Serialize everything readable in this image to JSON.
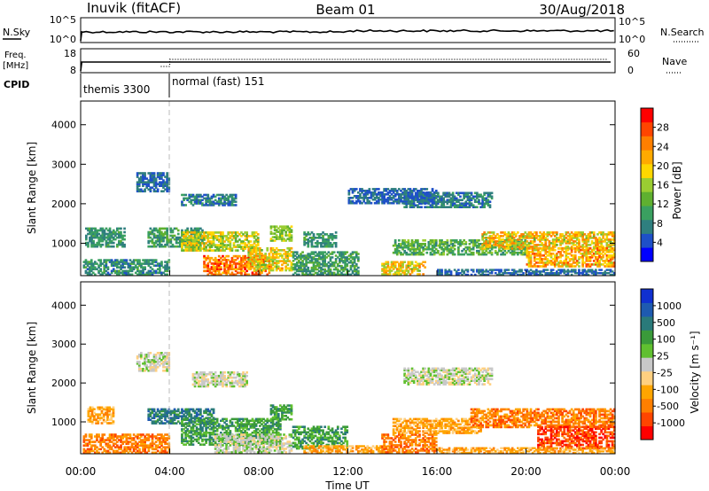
{
  "header": {
    "station_title": "Inuvik (fitACF)",
    "beam": "Beam 01",
    "date": "30/Aug/2018"
  },
  "noise_panel": {
    "left_label": "N.Sky",
    "left_ticks": [
      "10^5",
      "10^0"
    ],
    "right_ticks": [
      "10^5",
      "10^0"
    ],
    "right_label": "N.Search"
  },
  "freq_panel": {
    "left_label_line1": "Freq.",
    "left_label_line2": "[MHz]",
    "left_ticks": [
      "18",
      "8"
    ],
    "right_ticks": [
      "60",
      "0"
    ],
    "right_label": "Nave"
  },
  "cpid_panel": {
    "label": "CPID",
    "entries": [
      {
        "text": "themis 3300",
        "start_hour": 0
      },
      {
        "text": "normal (fast) 151",
        "start_hour": 4
      }
    ]
  },
  "time_axis": {
    "label": "Time UT",
    "ticks": [
      "00:00",
      "04:00",
      "08:00",
      "12:00",
      "16:00",
      "20:00",
      "00:00"
    ],
    "range_hours": [
      0,
      24
    ]
  },
  "chart_data": [
    {
      "type": "heatmap",
      "name": "power",
      "xlabel": "Time UT",
      "ylabel": "Slant Range [km]",
      "ylim": [
        180,
        4600
      ],
      "y_ticks": [
        "1000",
        "2000",
        "3000",
        "4000"
      ],
      "y_tick_values": [
        1000,
        2000,
        3000,
        4000
      ],
      "colorbar_label": "Power [dB]",
      "colorbar_ticks": [
        "4",
        "8",
        "12",
        "16",
        "20",
        "24",
        "28"
      ],
      "colorbar_tick_values": [
        4,
        8,
        12,
        16,
        20,
        24,
        28
      ],
      "colorbar_range": [
        0,
        32
      ],
      "colors": [
        "#0000ff",
        "#1e50c8",
        "#2f7f7f",
        "#3aa060",
        "#5fb030",
        "#9acd32",
        "#ffd700",
        "#ffaa00",
        "#ff7f00",
        "#ff4500",
        "#ff0000"
      ],
      "regions": [
        {
          "t0": 0.1,
          "t1": 4.0,
          "r0": 190,
          "r1": 600,
          "v0": 5,
          "v1": 12
        },
        {
          "t0": 0.2,
          "t1": 2.0,
          "r0": 900,
          "r1": 1400,
          "v0": 6,
          "v1": 12
        },
        {
          "t0": 3.0,
          "t1": 5.5,
          "r0": 900,
          "r1": 1400,
          "v0": 6,
          "v1": 14
        },
        {
          "t0": 2.5,
          "t1": 4.0,
          "r0": 2300,
          "r1": 2800,
          "v0": 4,
          "v1": 8
        },
        {
          "t0": 4.5,
          "t1": 7.0,
          "r0": 1950,
          "r1": 2250,
          "v0": 4,
          "v1": 10
        },
        {
          "t0": 4.5,
          "t1": 8.0,
          "r0": 800,
          "r1": 1300,
          "v0": 12,
          "v1": 22
        },
        {
          "t0": 5.5,
          "t1": 8.5,
          "r0": 190,
          "r1": 700,
          "v0": 20,
          "v1": 30
        },
        {
          "t0": 7.5,
          "t1": 9.5,
          "r0": 300,
          "r1": 900,
          "v0": 14,
          "v1": 24
        },
        {
          "t0": 8.5,
          "t1": 9.5,
          "r0": 1050,
          "r1": 1450,
          "v0": 12,
          "v1": 18
        },
        {
          "t0": 9.5,
          "t1": 12.5,
          "r0": 190,
          "r1": 800,
          "v0": 6,
          "v1": 14
        },
        {
          "t0": 10.0,
          "t1": 11.5,
          "r0": 900,
          "r1": 1300,
          "v0": 6,
          "v1": 12
        },
        {
          "t0": 13.5,
          "t1": 15.5,
          "r0": 200,
          "r1": 550,
          "v0": 14,
          "v1": 24
        },
        {
          "t0": 14.0,
          "t1": 20.0,
          "r0": 700,
          "r1": 1100,
          "v0": 8,
          "v1": 16
        },
        {
          "t0": 14.5,
          "t1": 18.5,
          "r0": 1900,
          "r1": 2300,
          "v0": 4,
          "v1": 10
        },
        {
          "t0": 12.0,
          "t1": 16.0,
          "r0": 2000,
          "r1": 2400,
          "v0": 3,
          "v1": 8
        },
        {
          "t0": 18.0,
          "t1": 24.0,
          "r0": 850,
          "r1": 1300,
          "v0": 14,
          "v1": 26
        },
        {
          "t0": 20.0,
          "t1": 24.0,
          "r0": 400,
          "r1": 900,
          "v0": 16,
          "v1": 28
        },
        {
          "t0": 16.0,
          "t1": 24.0,
          "r0": 190,
          "r1": 350,
          "v0": 4,
          "v1": 8
        }
      ]
    },
    {
      "type": "heatmap",
      "name": "velocity",
      "xlabel": "Time UT",
      "ylabel": "Slant Range [km]",
      "ylim": [
        180,
        4600
      ],
      "y_ticks": [
        "1000",
        "2000",
        "3000",
        "4000"
      ],
      "y_tick_values": [
        1000,
        2000,
        3000,
        4000
      ],
      "colorbar_label": "Velocity [m s⁻¹]",
      "colorbar_ticks": [
        "1000",
        "500",
        "100",
        "25",
        "-25",
        "-100",
        "-500",
        "-1000"
      ],
      "colorbar_tick_values": [
        1000,
        500,
        100,
        25,
        -25,
        -100,
        -500,
        -1000
      ],
      "colors": [
        "#ff0000",
        "#ff4500",
        "#ff7f00",
        "#ffa500",
        "#ffd080",
        "#c8c8c8",
        "#60c030",
        "#3a9a3a",
        "#2a7a7a",
        "#1e5ab0",
        "#1030d0"
      ],
      "regions": [
        {
          "t0": 0.1,
          "t1": 4.0,
          "r0": 190,
          "r1": 700,
          "cls": 2
        },
        {
          "t0": 0.3,
          "t1": 1.5,
          "r0": 950,
          "r1": 1400,
          "cls": 3
        },
        {
          "t0": 2.5,
          "t1": 4.0,
          "r0": 2300,
          "r1": 2800,
          "cls": 5
        },
        {
          "t0": 3.0,
          "t1": 6.0,
          "r0": 950,
          "r1": 1350,
          "cls": 8
        },
        {
          "t0": 5.0,
          "t1": 7.5,
          "r0": 1900,
          "r1": 2300,
          "cls": 5
        },
        {
          "t0": 4.5,
          "t1": 9.0,
          "r0": 400,
          "r1": 1100,
          "cls": 7
        },
        {
          "t0": 6.0,
          "t1": 9.5,
          "r0": 200,
          "r1": 700,
          "cls": 5
        },
        {
          "t0": 8.5,
          "t1": 9.5,
          "r0": 1050,
          "r1": 1450,
          "cls": 7
        },
        {
          "t0": 9.5,
          "t1": 12.0,
          "r0": 300,
          "r1": 900,
          "cls": 7
        },
        {
          "t0": 10.0,
          "t1": 14.0,
          "r0": 190,
          "r1": 400,
          "cls": 3
        },
        {
          "t0": 13.5,
          "t1": 16.0,
          "r0": 200,
          "r1": 700,
          "cls": 2
        },
        {
          "t0": 14.0,
          "t1": 18.0,
          "r0": 700,
          "r1": 1100,
          "cls": 3
        },
        {
          "t0": 14.5,
          "t1": 18.5,
          "r0": 1950,
          "r1": 2400,
          "cls": 5
        },
        {
          "t0": 17.5,
          "t1": 24.0,
          "r0": 850,
          "r1": 1350,
          "cls": 2
        },
        {
          "t0": 20.5,
          "t1": 24.0,
          "r0": 300,
          "r1": 900,
          "cls": 1
        },
        {
          "t0": 16.0,
          "t1": 24.0,
          "r0": 190,
          "r1": 350,
          "cls": 3
        }
      ]
    }
  ]
}
